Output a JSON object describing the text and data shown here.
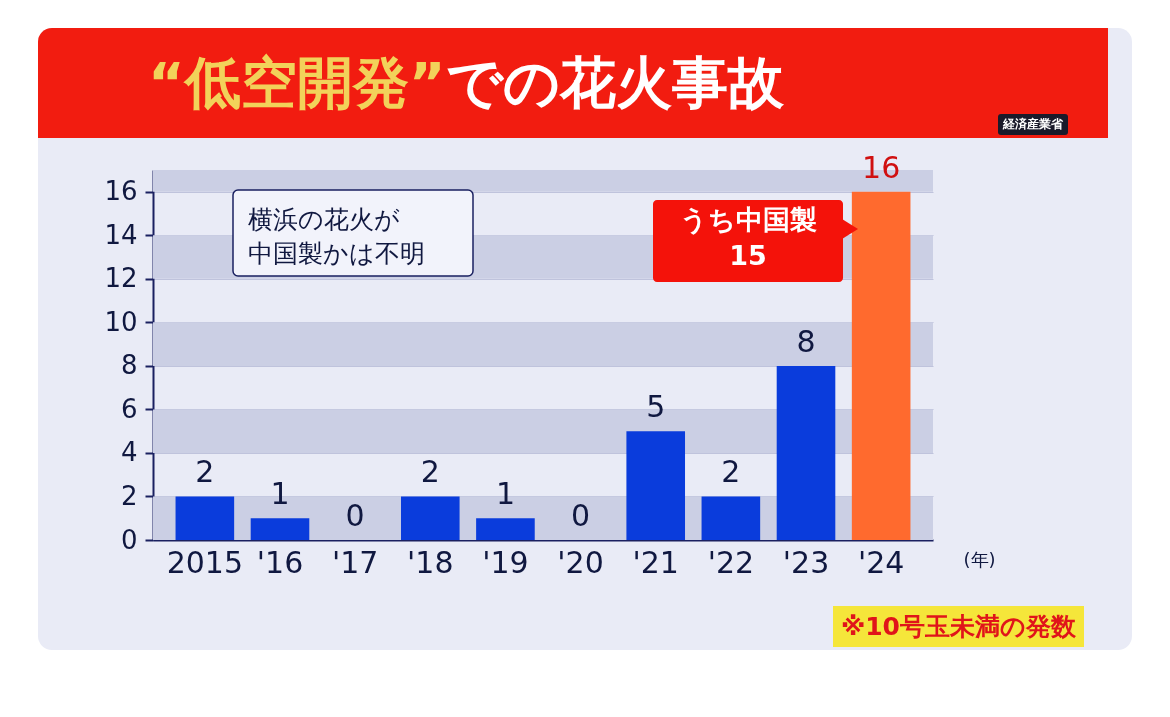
{
  "chart_data": {
    "type": "bar",
    "title": "“低空開発”での花火事故",
    "xlabel": "(年)",
    "categories": [
      "2015",
      "'16",
      "'17",
      "'18",
      "'19",
      "'20",
      "'21",
      "'22",
      "'23",
      "'24"
    ],
    "values": [
      2,
      1,
      0,
      2,
      1,
      0,
      5,
      2,
      8,
      16
    ],
    "colors": [
      "#0a3cdc",
      "#0a3cdc",
      "#0a3cdc",
      "#0a3cdc",
      "#0a3cdc",
      "#0a3cdc",
      "#0a3cdc",
      "#0a3cdc",
      "#0a3cdc",
      "#ff6a2e"
    ],
    "ylim": [
      0,
      17
    ],
    "yticks": [
      0,
      2,
      4,
      6,
      8,
      10,
      12,
      14,
      16
    ],
    "grid": true,
    "data_labels": true,
    "annotations": [
      "経済産業省",
      "横浜の花火が中国製かは不明",
      "うち中国製 15",
      "※10号玉未満の発数"
    ]
  }
}
